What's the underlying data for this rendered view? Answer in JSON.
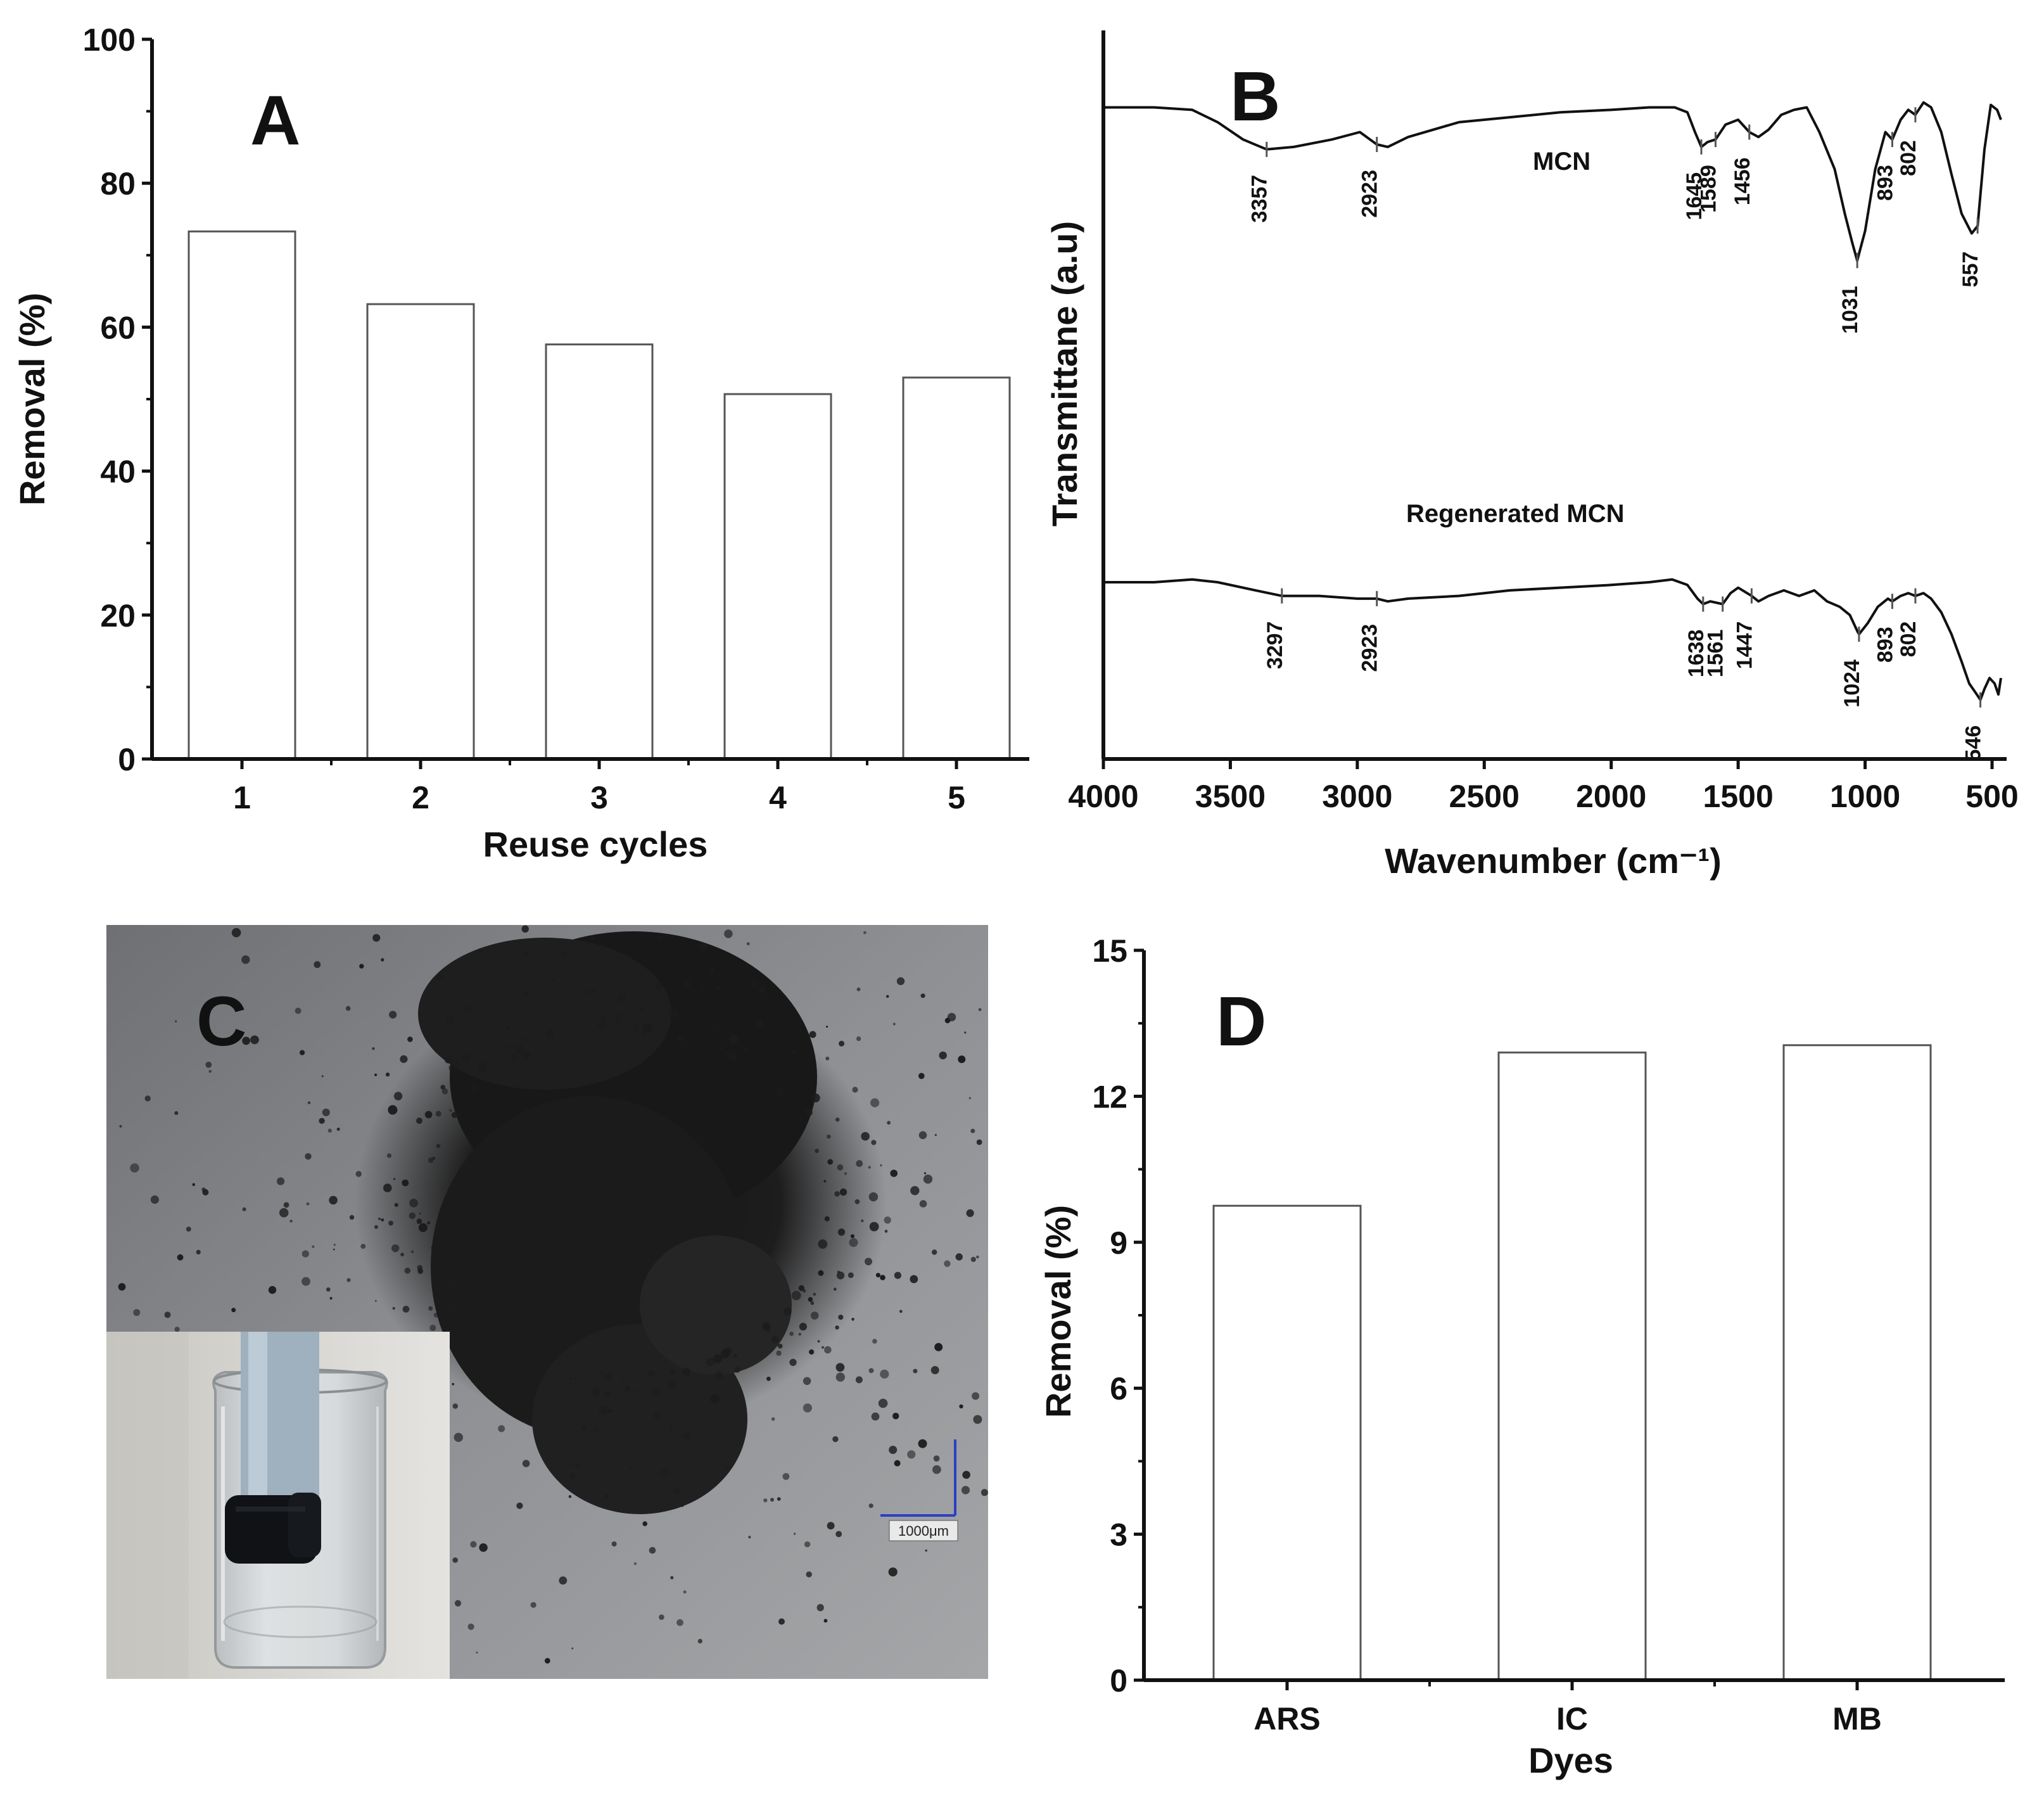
{
  "chart_data": [
    {
      "type": "bar",
      "panel": "A",
      "categories": [
        "1",
        "2",
        "3",
        "4",
        "5"
      ],
      "values": [
        73.3,
        63.2,
        57.6,
        50.7,
        53.0
      ],
      "xlabel": "Reuse cycles",
      "ylabel": "Removal (%)",
      "ylim": [
        0,
        100
      ],
      "yticks": [
        "0",
        "20",
        "40",
        "60",
        "80",
        "100"
      ],
      "grid": false
    },
    {
      "type": "line",
      "panel": "B",
      "xlabel": "Wavenumber (cm⁻¹)",
      "ylabel": "Transmittane (a.u)",
      "xlim": [
        4000,
        450
      ],
      "xticks": [
        "4000",
        "3500",
        "3000",
        "2500",
        "2000",
        "1500",
        "1000",
        "500"
      ],
      "series": [
        {
          "name": "MCN",
          "peaks": [
            "3357",
            "2923",
            "1645",
            "1589",
            "1456",
            "1031",
            "893",
            "802",
            "557"
          ],
          "points": [
            [
              4000,
              95
            ],
            [
              3800,
              95
            ],
            [
              3650,
              94
            ],
            [
              3550,
              89
            ],
            [
              3450,
              82
            ],
            [
              3357,
              78
            ],
            [
              3250,
              79
            ],
            [
              3100,
              82
            ],
            [
              2990,
              85
            ],
            [
              2923,
              80
            ],
            [
              2880,
              79
            ],
            [
              2800,
              83
            ],
            [
              2600,
              89
            ],
            [
              2400,
              91
            ],
            [
              2200,
              93
            ],
            [
              2000,
              94
            ],
            [
              1850,
              95
            ],
            [
              1750,
              95
            ],
            [
              1700,
              93
            ],
            [
              1670,
              85
            ],
            [
              1645,
              79
            ],
            [
              1620,
              81
            ],
            [
              1589,
              82
            ],
            [
              1550,
              88
            ],
            [
              1500,
              90
            ],
            [
              1456,
              85
            ],
            [
              1420,
              83
            ],
            [
              1380,
              86
            ],
            [
              1330,
              92
            ],
            [
              1280,
              94
            ],
            [
              1230,
              95
            ],
            [
              1180,
              85
            ],
            [
              1120,
              70
            ],
            [
              1080,
              52
            ],
            [
              1050,
              40
            ],
            [
              1031,
              33
            ],
            [
              1000,
              45
            ],
            [
              960,
              70
            ],
            [
              920,
              85
            ],
            [
              893,
              82
            ],
            [
              860,
              90
            ],
            [
              830,
              94
            ],
            [
              802,
              92
            ],
            [
              770,
              97
            ],
            [
              740,
              95
            ],
            [
              700,
              85
            ],
            [
              660,
              68
            ],
            [
              620,
              52
            ],
            [
              580,
              44
            ],
            [
              557,
              47
            ],
            [
              530,
              78
            ],
            [
              505,
              96
            ],
            [
              480,
              94
            ],
            [
              465,
              90
            ]
          ]
        },
        {
          "name": "Regenerated MCN",
          "peaks": [
            "3297",
            "2923",
            "1638",
            "1561",
            "1447",
            "1024",
            "893",
            "802",
            "546"
          ],
          "points": [
            [
              4000,
              47
            ],
            [
              3800,
              47
            ],
            [
              3650,
              48
            ],
            [
              3550,
              47
            ],
            [
              3400,
              44
            ],
            [
              3297,
              42
            ],
            [
              3150,
              42
            ],
            [
              3000,
              41
            ],
            [
              2923,
              41
            ],
            [
              2880,
              40
            ],
            [
              2800,
              41
            ],
            [
              2600,
              42
            ],
            [
              2400,
              44
            ],
            [
              2200,
              45
            ],
            [
              2000,
              46
            ],
            [
              1850,
              47
            ],
            [
              1760,
              48
            ],
            [
              1700,
              46
            ],
            [
              1660,
              41
            ],
            [
              1638,
              39
            ],
            [
              1610,
              40
            ],
            [
              1561,
              39
            ],
            [
              1530,
              43
            ],
            [
              1500,
              45
            ],
            [
              1447,
              42
            ],
            [
              1420,
              40
            ],
            [
              1380,
              42
            ],
            [
              1320,
              44
            ],
            [
              1260,
              42
            ],
            [
              1200,
              44
            ],
            [
              1150,
              40
            ],
            [
              1100,
              38
            ],
            [
              1060,
              35
            ],
            [
              1030,
              29
            ],
            [
              1024,
              28
            ],
            [
              990,
              32
            ],
            [
              950,
              38
            ],
            [
              910,
              41
            ],
            [
              893,
              40
            ],
            [
              860,
              42
            ],
            [
              830,
              43
            ],
            [
              802,
              42
            ],
            [
              770,
              43
            ],
            [
              740,
              41
            ],
            [
              700,
              36
            ],
            [
              660,
              28
            ],
            [
              620,
              18
            ],
            [
              590,
              10
            ],
            [
              560,
              6
            ],
            [
              546,
              4
            ],
            [
              530,
              8
            ],
            [
              510,
              12
            ],
            [
              490,
              10
            ],
            [
              475,
              6
            ],
            [
              465,
              12
            ]
          ]
        }
      ]
    },
    {
      "type": "bar",
      "panel": "D",
      "categories": [
        "ARS",
        "IC",
        "MB"
      ],
      "values": [
        9.75,
        12.9,
        13.05
      ],
      "xlabel": "Dyes",
      "ylabel": "Removal (%)",
      "ylim": [
        0,
        15
      ],
      "yticks": [
        "0",
        "3",
        "6",
        "9",
        "12",
        "15"
      ],
      "grid": false
    }
  ],
  "photo": {
    "panel": "C",
    "scale_bar_label": "1000μm"
  }
}
